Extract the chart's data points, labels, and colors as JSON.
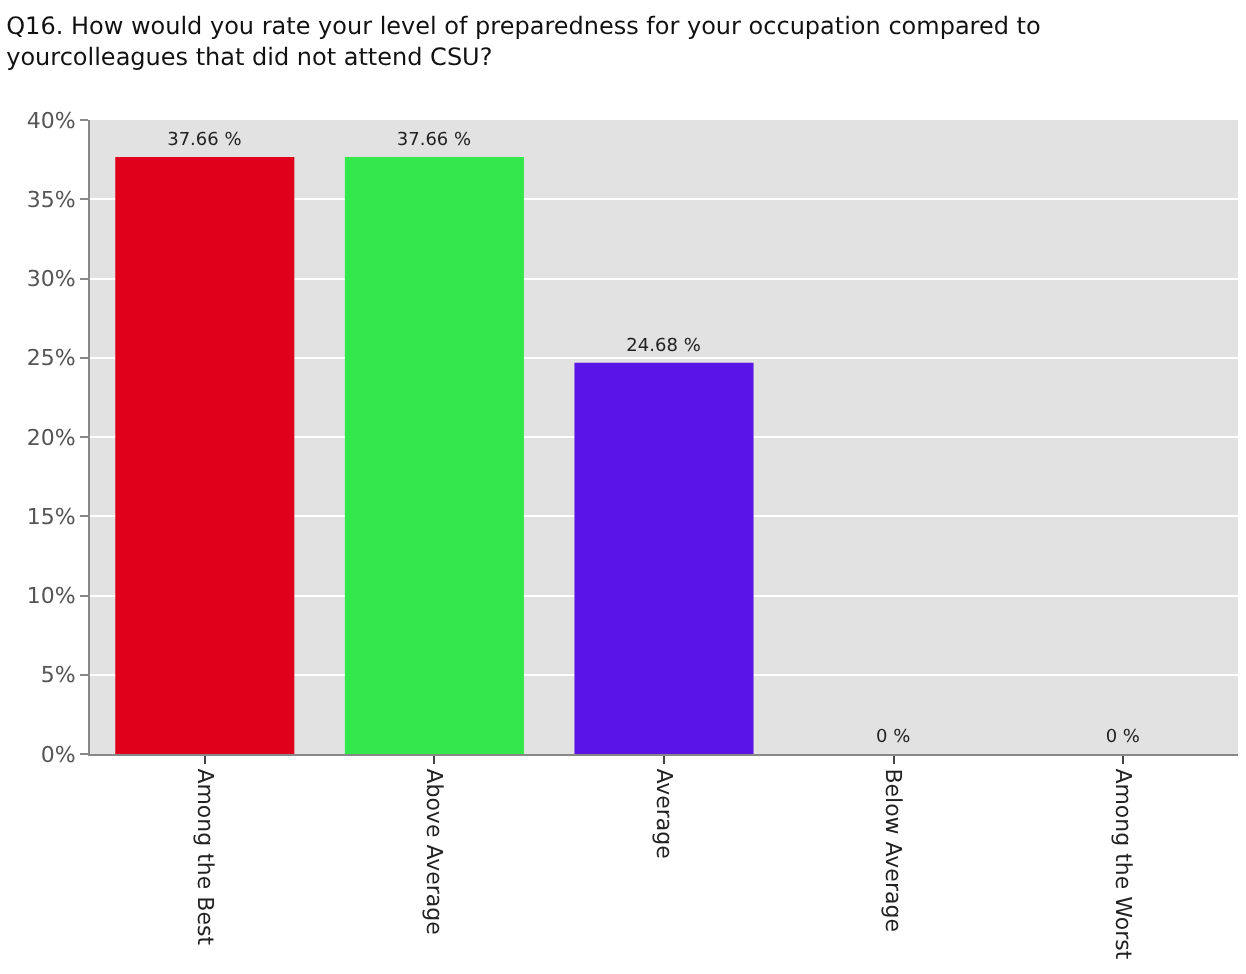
{
  "chart_data": {
    "type": "bar",
    "title": "Q16. How would you rate your level of preparedness for your occupation compared to\nyourcolleagues that did not attend CSU?",
    "categories": [
      "Among the Best",
      "Above Average",
      "Average",
      "Below Average",
      "Among the Worst"
    ],
    "values": [
      37.66,
      37.66,
      24.68,
      0,
      0
    ],
    "colors": [
      "#e0001c",
      "#33e84a",
      "#5a14e8",
      "#888888",
      "#888888"
    ],
    "value_labels": [
      "37.66 %",
      "37.66 %",
      "24.68 %",
      "0 %",
      "0 %"
    ],
    "ylim": [
      0,
      40
    ],
    "yticks": [
      {
        "value": 0,
        "label": "0%"
      },
      {
        "value": 5,
        "label": "5%"
      },
      {
        "value": 10,
        "label": "10%"
      },
      {
        "value": 15,
        "label": "15%"
      },
      {
        "value": 20,
        "label": "20%"
      },
      {
        "value": 25,
        "label": "25%"
      },
      {
        "value": 30,
        "label": "30%"
      },
      {
        "value": 35,
        "label": "35%"
      },
      {
        "value": 40,
        "label": "40%"
      }
    ],
    "grid": "y",
    "legend": false
  }
}
